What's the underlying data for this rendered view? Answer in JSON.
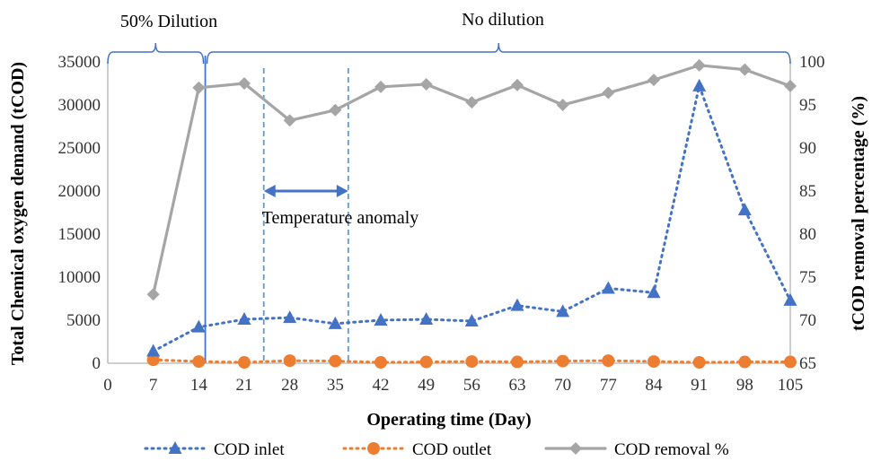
{
  "colors": {
    "inlet": "#4472C4",
    "outlet": "#ED7D31",
    "removal": "#A5A5A5",
    "axis": "#BFBFBF",
    "bracket": "#4472C4",
    "anomaly": "#5B9BD5"
  },
  "chart_data": {
    "type": "line",
    "xlabel": "Operating time (Day)",
    "ylabel": "Total Chemical oxygen demand (tCOD)",
    "y2label": "tCOD removal percentage (%)",
    "xlim": [
      0,
      105
    ],
    "ylim": [
      0,
      35000
    ],
    "y2lim": [
      65,
      100
    ],
    "x_ticks": [
      0,
      7,
      14,
      21,
      28,
      35,
      42,
      49,
      56,
      63,
      70,
      77,
      84,
      91,
      98,
      105
    ],
    "y_ticks": [
      0,
      5000,
      10000,
      15000,
      20000,
      25000,
      30000,
      35000
    ],
    "y2_ticks": [
      65,
      70,
      75,
      80,
      85,
      90,
      95,
      100
    ],
    "grid": false,
    "legend_position": "bottom",
    "x": [
      7,
      14,
      21,
      28,
      35,
      42,
      49,
      56,
      63,
      70,
      77,
      84,
      91,
      98,
      105
    ],
    "series": [
      {
        "name": "COD inlet",
        "axis": "left",
        "style": "dotted",
        "marker": "triangle",
        "values": [
          1400,
          4200,
          5100,
          5300,
          4600,
          5000,
          5100,
          4900,
          6700,
          6000,
          8700,
          8200,
          32200,
          17800,
          7300
        ]
      },
      {
        "name": "COD outlet",
        "axis": "left",
        "style": "dotted",
        "marker": "circle",
        "values": [
          400,
          200,
          100,
          300,
          250,
          100,
          150,
          200,
          150,
          250,
          300,
          200,
          100,
          150,
          150
        ]
      },
      {
        "name": "COD removal %",
        "axis": "right",
        "style": "solid",
        "marker": "diamond",
        "values": [
          73.0,
          97.0,
          97.5,
          93.2,
          94.4,
          97.1,
          97.4,
          95.3,
          97.3,
          95.0,
          96.4,
          97.9,
          99.6,
          99.1,
          97.2
        ]
      }
    ],
    "annotations": {
      "dilution_label": "50% Dilution",
      "no_dilution_label": "No dilution",
      "anomaly_label": "Temperature anomaly",
      "dilution_range": [
        0,
        15
      ],
      "no_dilution_range": [
        15,
        105
      ],
      "anomaly_range": [
        24,
        37
      ],
      "dilution_end_day": 15
    }
  }
}
